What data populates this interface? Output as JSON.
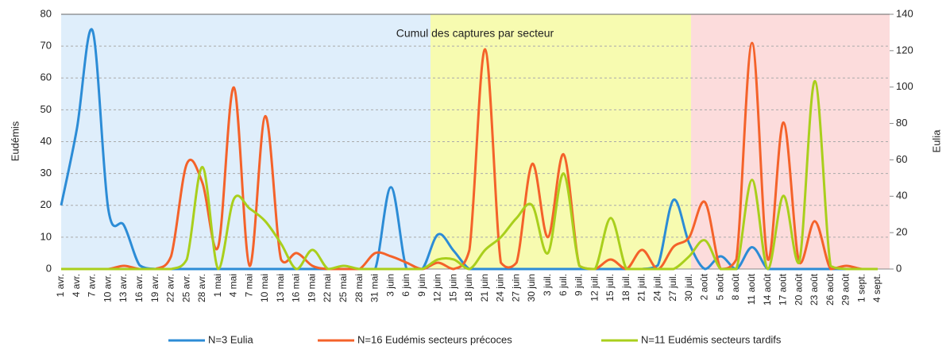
{
  "chart_data": {
    "type": "line",
    "annotation": "Cumul des captures par secteur",
    "y_label": "Eudémis",
    "y2_label": "Eulia",
    "categories": [
      "1 avr.",
      "4 avr.",
      "7 avr.",
      "10 avr.",
      "13 avr.",
      "16 avr.",
      "19 avr.",
      "22 avr.",
      "25 avr.",
      "28 avr.",
      "1 mai",
      "4 mai",
      "7 mai",
      "10 mai",
      "13 mai",
      "16 mai",
      "19 mai",
      "22 mai",
      "25 mai",
      "28 mai",
      "31 mai",
      "3 juin",
      "6 juin",
      "9 juin",
      "12 juin",
      "15 juin",
      "18 juin",
      "21 juin",
      "24 juin",
      "27 juin",
      "30 juin",
      "3 juil.",
      "6 juil.",
      "9 juil.",
      "12 juil.",
      "15 juil.",
      "18 juil.",
      "21 juil.",
      "24 juil.",
      "27 juil.",
      "30 juil.",
      "2 août",
      "5 août",
      "8 août",
      "11 août",
      "14 août",
      "17 août",
      "20 août",
      "23 août",
      "26 août",
      "29 août",
      "1 sept.",
      "4 sept."
    ],
    "series": [
      {
        "name": "N=3 Eulia",
        "color": "#2c8cd6",
        "axis": "y2",
        "values": [
          35,
          77,
          131,
          33,
          24,
          2,
          0,
          0,
          0,
          0,
          0,
          0,
          0,
          0,
          0,
          0,
          0,
          0,
          0,
          0,
          0,
          45,
          0,
          0,
          19,
          10,
          0,
          0,
          0,
          0,
          0,
          0,
          0,
          0,
          0,
          0,
          0,
          0,
          2,
          38,
          14,
          0,
          7,
          0,
          12,
          0,
          0,
          0,
          0,
          0,
          0,
          0,
          0
        ]
      },
      {
        "name": "N=16 Eudémis secteurs précoces",
        "color": "#f4622a",
        "values": [
          0,
          0,
          0,
          0,
          1,
          0,
          0,
          4,
          33,
          27,
          7,
          57,
          1,
          48,
          3,
          5,
          1,
          0,
          0,
          0,
          5,
          4,
          2,
          0,
          2,
          0,
          6,
          69,
          2,
          2,
          33,
          10,
          36,
          1,
          0,
          3,
          0,
          6,
          0,
          7,
          10,
          21,
          0,
          3,
          71,
          3,
          46,
          2,
          15,
          0,
          1,
          0,
          0
        ]
      },
      {
        "name": "N=11 Eudémis secteurs tardifs",
        "color": "#a9cf1c",
        "values": [
          0,
          0,
          0,
          0,
          0,
          0,
          0,
          0,
          3,
          32,
          0,
          22,
          19,
          15,
          8,
          0,
          6,
          0,
          1,
          0,
          0,
          0,
          0,
          0,
          3,
          3,
          0,
          6,
          10,
          16,
          20,
          5,
          30,
          1,
          0,
          16,
          0,
          0,
          0,
          0,
          4,
          9,
          0,
          0,
          28,
          0,
          23,
          2,
          59,
          1,
          0,
          0,
          0
        ]
      }
    ],
    "ylim": [
      0,
      80
    ],
    "yticks": [
      0,
      10,
      20,
      30,
      40,
      50,
      60,
      70,
      80
    ],
    "y2lim": [
      0,
      140
    ],
    "y2ticks": [
      0,
      20,
      40,
      60,
      80,
      100,
      120,
      140
    ],
    "grid": true
  }
}
